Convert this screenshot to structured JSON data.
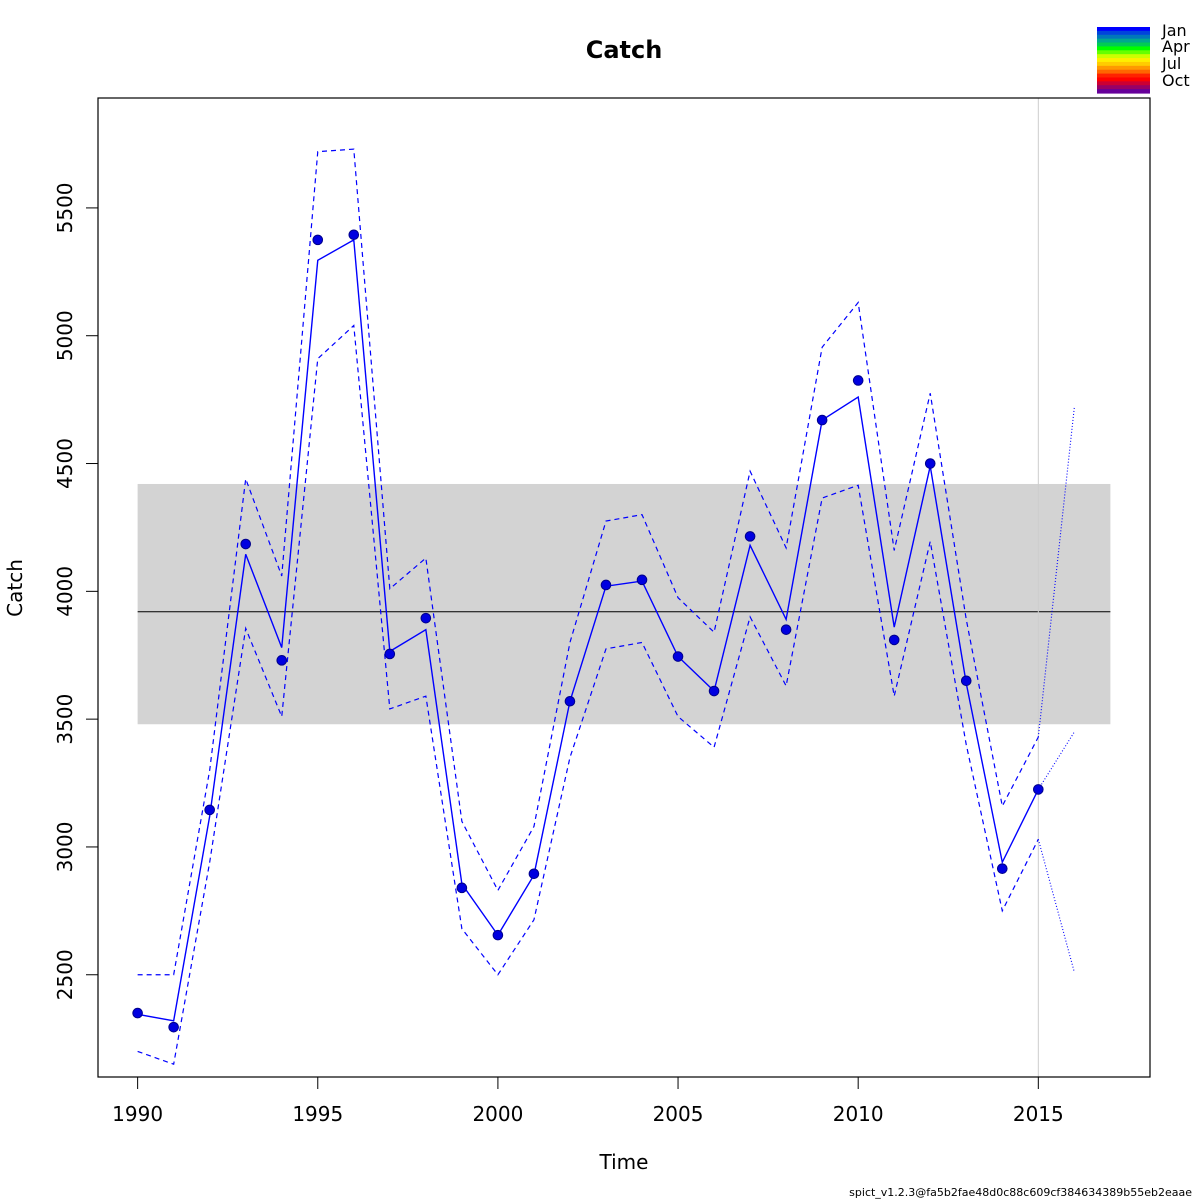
{
  "chart_data": {
    "type": "line",
    "title": "Catch",
    "xlabel": "Time",
    "ylabel": "Catch",
    "xlim": [
      1988.9,
      2018.1
    ],
    "ylim": [
      2100,
      5930
    ],
    "x_ticks": [
      1990,
      1995,
      2000,
      2005,
      2010,
      2015
    ],
    "x_tick_labels": [
      "1990",
      "1995",
      "2000",
      "2005",
      "2010",
      "2015"
    ],
    "y_ticks": [
      2500,
      3000,
      3500,
      4000,
      4500,
      5000,
      5500
    ],
    "y_tick_labels": [
      "2500",
      "3000",
      "3500",
      "4000",
      "4500",
      "5000",
      "5500"
    ],
    "grid": false,
    "series": [
      {
        "role": "observed-points",
        "color": "#0000e0",
        "x": [
          1990,
          1991,
          1992,
          1993,
          1994,
          1995,
          1996,
          1997,
          1998,
          1999,
          2000,
          2001,
          2002,
          2003,
          2004,
          2005,
          2006,
          2007,
          2008,
          2009,
          2010,
          2011,
          2012,
          2013,
          2014,
          2015
        ],
        "y": [
          2350,
          2295,
          3145,
          4185,
          3730,
          5375,
          5395,
          3755,
          3895,
          2840,
          2655,
          2895,
          3570,
          4025,
          4045,
          3745,
          3610,
          4215,
          3850,
          4670,
          4825,
          3810,
          4500,
          3650,
          2915,
          3225
        ]
      },
      {
        "role": "estimate",
        "color": "#0000ff",
        "x": [
          1990,
          1991,
          1992,
          1993,
          1994,
          1995,
          1996,
          1997,
          1998,
          1999,
          2000,
          2001,
          2002,
          2003,
          2004,
          2005,
          2006,
          2007,
          2008,
          2009,
          2010,
          2011,
          2012,
          2013,
          2014,
          2015
        ],
        "y": [
          2345,
          2320,
          3120,
          4145,
          3780,
          5295,
          5375,
          3765,
          3850,
          2855,
          2655,
          2890,
          3570,
          4020,
          4040,
          3745,
          3610,
          4180,
          3890,
          4670,
          4760,
          3860,
          4490,
          3640,
          2940,
          3225
        ]
      },
      {
        "role": "upper-ci",
        "color": "#0000ff",
        "x": [
          1990,
          1991,
          1992,
          1993,
          1994,
          1995,
          1996,
          1997,
          1998,
          1999,
          2000,
          2001,
          2002,
          2003,
          2004,
          2005,
          2006,
          2007,
          2008,
          2009,
          2010,
          2011,
          2012,
          2013,
          2014,
          2015
        ],
        "y": [
          2500,
          2500,
          3300,
          4440,
          4060,
          5720,
          5730,
          4010,
          4130,
          3100,
          2830,
          3080,
          3800,
          4275,
          4300,
          3975,
          3840,
          4470,
          4170,
          4955,
          5130,
          4160,
          4775,
          3890,
          3160,
          3430
        ]
      },
      {
        "role": "lower-ci",
        "color": "#0000ff",
        "x": [
          1990,
          1991,
          1992,
          1993,
          1994,
          1995,
          1996,
          1997,
          1998,
          1999,
          2000,
          2001,
          2002,
          2003,
          2004,
          2005,
          2006,
          2007,
          2008,
          2009,
          2010,
          2011,
          2012,
          2013,
          2014,
          2015
        ],
        "y": [
          2200,
          2150,
          2940,
          3855,
          3510,
          4910,
          5040,
          3540,
          3590,
          2680,
          2500,
          2715,
          3350,
          3775,
          3800,
          3510,
          3390,
          3900,
          3630,
          4365,
          4415,
          3590,
          4195,
          3400,
          2750,
          3030
        ]
      },
      {
        "role": "forecast",
        "color": "#0000ff",
        "x": [
          2015,
          2016
        ],
        "y": [
          3225,
          3450
        ]
      },
      {
        "role": "forecast-upper",
        "color": "#0000ff",
        "x": [
          2015,
          2016
        ],
        "y": [
          3430,
          4720
        ]
      },
      {
        "role": "forecast-lower",
        "color": "#0000ff",
        "x": [
          2015,
          2016
        ],
        "y": [
          3030,
          2510
        ]
      }
    ],
    "msy_band": {
      "x_range": [
        1990,
        2017
      ],
      "y_lower": 3480,
      "y_upper": 4420,
      "y_center": 3920,
      "color": "#d3d3d3"
    },
    "vertical_line": {
      "x": 2015,
      "color": "#cccccc"
    },
    "legend": {
      "placement": "top-right",
      "labels": [
        "Jan",
        "Apr",
        "Jul",
        "Oct"
      ],
      "colors": [
        "#0000ff",
        "#0044dd",
        "#0077bb",
        "#00a890",
        "#00cc55",
        "#00ff00",
        "#66ff00",
        "#ccff00",
        "#ffee00",
        "#ffcc00",
        "#ff9900",
        "#ff6600",
        "#ff2200",
        "#ff0000",
        "#cc0033",
        "#990066",
        "#660099"
      ]
    }
  },
  "footer": "spict_v1.2.3@fa5b2fae48d0c88c609cf384634389b55eb2eaae"
}
